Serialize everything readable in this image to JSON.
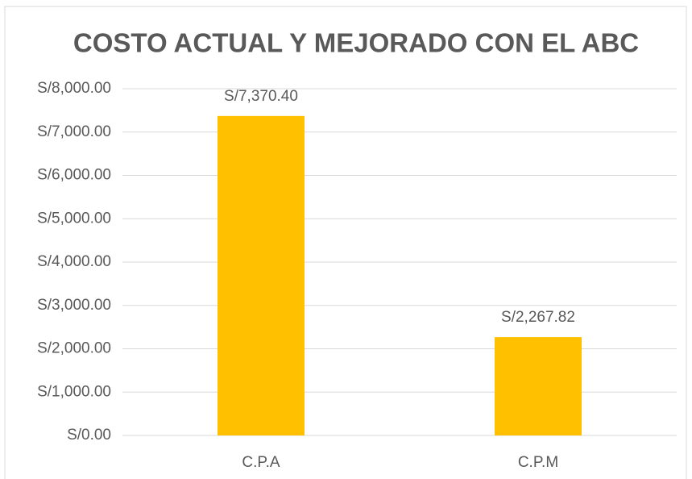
{
  "chart_data": {
    "type": "bar",
    "title": "COSTO ACTUAL Y MEJORADO CON EL ABC",
    "categories": [
      "C.P.A",
      "C.P.M"
    ],
    "values": [
      7370.4,
      2267.82
    ],
    "value_labels": [
      "S/7,370.40",
      "S/2,267.82"
    ],
    "color": "#ffc000",
    "ylim": [
      0,
      8000
    ],
    "yticks": [
      {
        "value": 0,
        "label": "S/0.00"
      },
      {
        "value": 1000,
        "label": "S/1,000.00"
      },
      {
        "value": 2000,
        "label": "S/2,000.00"
      },
      {
        "value": 3000,
        "label": "S/3,000.00"
      },
      {
        "value": 4000,
        "label": "S/4,000.00"
      },
      {
        "value": 5000,
        "label": "S/5,000.00"
      },
      {
        "value": 6000,
        "label": "S/6,000.00"
      },
      {
        "value": 7000,
        "label": "S/7,000.00"
      },
      {
        "value": 8000,
        "label": "S/8,000.00"
      }
    ],
    "grid": true
  }
}
